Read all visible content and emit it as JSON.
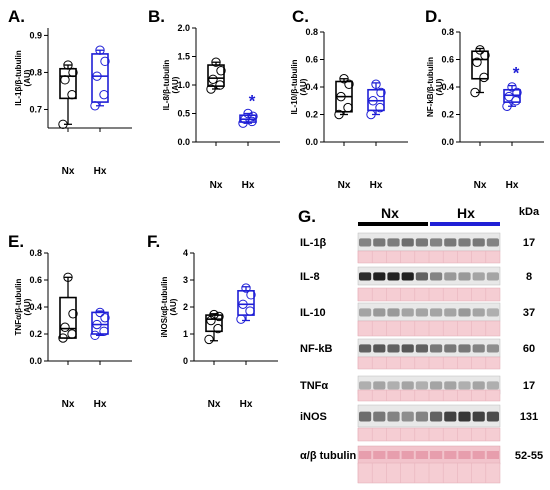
{
  "chart_data": [
    {
      "panel": "A.",
      "type": "box",
      "ylabel": "IL-1β/β-tubulin\n(AU)",
      "ylim": [
        0.65,
        0.92
      ],
      "yticks": [
        "0.7",
        "0.8",
        "0.9"
      ],
      "ytick_values": [
        0.7,
        0.8,
        0.9
      ],
      "categories": [
        "Nx",
        "Hx"
      ],
      "series": [
        {
          "group": "Nx",
          "color": "#000000",
          "min": 0.66,
          "q1": 0.73,
          "median": 0.79,
          "q3": 0.81,
          "max": 0.82,
          "points": [
            0.66,
            0.74,
            0.78,
            0.8,
            0.82
          ]
        },
        {
          "group": "Hx",
          "color": "#1f1fd6",
          "min": 0.71,
          "q1": 0.72,
          "median": 0.79,
          "q3": 0.85,
          "max": 0.86,
          "points": [
            0.71,
            0.74,
            0.79,
            0.83,
            0.86
          ]
        }
      ],
      "significance": ""
    },
    {
      "panel": "B.",
      "type": "box",
      "ylabel": "IL-8/β-tubulin\n(AU)",
      "ylim": [
        0,
        2.0
      ],
      "yticks": [
        "0.0",
        "0.5",
        "1.0",
        "1.5",
        "2.0"
      ],
      "ytick_values": [
        0,
        0.5,
        1.0,
        1.5,
        2.0
      ],
      "categories": [
        "Nx",
        "Hx"
      ],
      "series": [
        {
          "group": "Nx",
          "color": "#000000",
          "min": 0.93,
          "q1": 0.98,
          "median": 1.12,
          "q3": 1.35,
          "max": 1.4,
          "points": [
            0.93,
            1.0,
            1.1,
            1.25,
            1.4
          ]
        },
        {
          "group": "Hx",
          "color": "#1f1fd6",
          "min": 0.33,
          "q1": 0.35,
          "median": 0.4,
          "q3": 0.47,
          "max": 0.5,
          "points": [
            0.33,
            0.36,
            0.4,
            0.45,
            0.5
          ]
        }
      ],
      "significance": "*"
    },
    {
      "panel": "C.",
      "type": "box",
      "ylabel": "IL-10/β-tubulin\n(AU)",
      "ylim": [
        0,
        0.8
      ],
      "yticks": [
        "0.0",
        "0.2",
        "0.4",
        "0.6",
        "0.8"
      ],
      "ytick_values": [
        0,
        0.2,
        0.4,
        0.6,
        0.8
      ],
      "categories": [
        "Nx",
        "Hx"
      ],
      "series": [
        {
          "group": "Nx",
          "color": "#000000",
          "min": 0.2,
          "q1": 0.22,
          "median": 0.33,
          "q3": 0.44,
          "max": 0.46,
          "points": [
            0.2,
            0.25,
            0.33,
            0.42,
            0.46
          ]
        },
        {
          "group": "Hx",
          "color": "#1f1fd6",
          "min": 0.2,
          "q1": 0.23,
          "median": 0.3,
          "q3": 0.38,
          "max": 0.43,
          "points": [
            0.2,
            0.25,
            0.3,
            0.36,
            0.42
          ]
        }
      ],
      "significance": ""
    },
    {
      "panel": "D.",
      "type": "box",
      "ylabel": "NF-kB/β-tubulin\n(AU)",
      "ylim": [
        0,
        0.8
      ],
      "yticks": [
        "0.0",
        "0.2",
        "0.4",
        "0.6",
        "0.8"
      ],
      "ytick_values": [
        0,
        0.2,
        0.4,
        0.6,
        0.8
      ],
      "categories": [
        "Nx",
        "Hx"
      ],
      "series": [
        {
          "group": "Nx",
          "color": "#000000",
          "min": 0.36,
          "q1": 0.46,
          "median": 0.6,
          "q3": 0.66,
          "max": 0.68,
          "points": [
            0.36,
            0.47,
            0.58,
            0.63,
            0.67
          ]
        },
        {
          "group": "Hx",
          "color": "#1f1fd6",
          "min": 0.26,
          "q1": 0.29,
          "median": 0.34,
          "q3": 0.38,
          "max": 0.41,
          "points": [
            0.26,
            0.3,
            0.33,
            0.36,
            0.4
          ]
        }
      ],
      "significance": "*"
    },
    {
      "panel": "E.",
      "type": "box",
      "ylabel": "TNFα/β-tubulin\n(AU)",
      "ylim": [
        0,
        0.8
      ],
      "yticks": [
        "0.0",
        "0.2",
        "0.4",
        "0.6",
        "0.8"
      ],
      "ytick_values": [
        0,
        0.2,
        0.4,
        0.6,
        0.8
      ],
      "categories": [
        "Nx",
        "Hx"
      ],
      "series": [
        {
          "group": "Nx",
          "color": "#000000",
          "min": 0.17,
          "q1": 0.17,
          "median": 0.24,
          "q3": 0.47,
          "max": 0.62,
          "points": [
            0.17,
            0.2,
            0.25,
            0.35,
            0.62
          ]
        },
        {
          "group": "Hx",
          "color": "#1f1fd6",
          "min": 0.19,
          "q1": 0.2,
          "median": 0.27,
          "q3": 0.36,
          "max": 0.37,
          "points": [
            0.19,
            0.22,
            0.27,
            0.32,
            0.36
          ]
        }
      ],
      "significance": ""
    },
    {
      "panel": "F.",
      "type": "box",
      "ylabel": "iNOS/αβ-tubulin\n(AU)",
      "ylim": [
        0,
        4
      ],
      "yticks": [
        "0",
        "1",
        "2",
        "3",
        "4"
      ],
      "ytick_values": [
        0,
        1,
        2,
        3,
        4
      ],
      "categories": [
        "Nx",
        "Hx"
      ],
      "series": [
        {
          "group": "Nx",
          "color": "#000000",
          "min": 0.75,
          "q1": 1.1,
          "median": 1.55,
          "q3": 1.7,
          "max": 1.75,
          "points": [
            0.8,
            1.2,
            1.5,
            1.65,
            1.72
          ]
        },
        {
          "group": "Hx",
          "color": "#1f1fd6",
          "min": 1.5,
          "q1": 1.7,
          "median": 2.1,
          "q3": 2.6,
          "max": 2.75,
          "points": [
            1.55,
            1.85,
            2.1,
            2.45,
            2.7
          ]
        }
      ],
      "significance": ""
    }
  ],
  "blot": {
    "panel": "G.",
    "groups": [
      "Nx",
      "Hx"
    ],
    "group_colors": [
      "#000000",
      "#1f1fd6"
    ],
    "kda_header": "kDa",
    "rows": [
      {
        "label": "IL-1β",
        "kda": "17",
        "intensity": [
          0.45,
          0.5,
          0.48,
          0.55,
          0.5,
          0.45,
          0.5,
          0.48,
          0.5,
          0.45
        ]
      },
      {
        "label": "IL-8",
        "kda": "8",
        "intensity": [
          0.85,
          0.9,
          0.88,
          0.9,
          0.6,
          0.45,
          0.35,
          0.35,
          0.3,
          0.3
        ]
      },
      {
        "label": "IL-10",
        "kda": "37",
        "intensity": [
          0.3,
          0.35,
          0.35,
          0.3,
          0.3,
          0.3,
          0.3,
          0.35,
          0.3,
          0.25
        ]
      },
      {
        "label": "NF-kB",
        "kda": "60",
        "intensity": [
          0.6,
          0.65,
          0.6,
          0.65,
          0.6,
          0.5,
          0.5,
          0.5,
          0.45,
          0.4
        ]
      },
      {
        "label": "TNFα",
        "kda": "17",
        "intensity": [
          0.25,
          0.3,
          0.25,
          0.3,
          0.25,
          0.3,
          0.3,
          0.25,
          0.3,
          0.25
        ]
      },
      {
        "label": "iNOS",
        "kda": "131",
        "intensity": [
          0.55,
          0.5,
          0.45,
          0.4,
          0.45,
          0.6,
          0.75,
          0.8,
          0.75,
          0.7
        ]
      },
      {
        "label": "α/β tubulin",
        "kda": "52-55",
        "intensity": []
      }
    ]
  }
}
